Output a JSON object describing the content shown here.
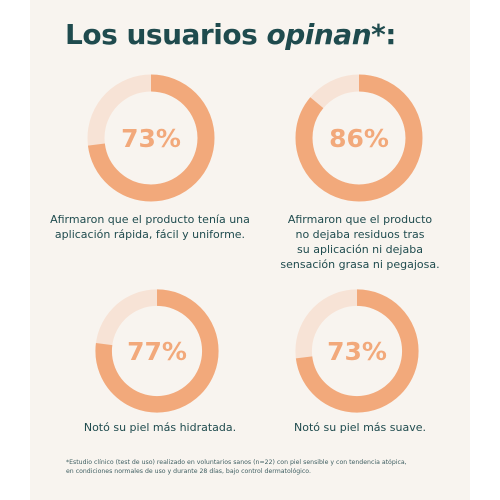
{
  "colors": {
    "background": "#f8f4ef",
    "ring_fill": "#f2a97b",
    "ring_track": "#f7e3d6",
    "text_dark": "#1f4b4e"
  },
  "header": {
    "title_part1": "Los usuarios ",
    "title_emphasis": "opinan",
    "title_suffix": "*:"
  },
  "stats": [
    {
      "value": 73,
      "label": "73%",
      "caption": "Afirmaron que el producto tenía una\naplicación rápida, fácil y uniforme."
    },
    {
      "value": 86,
      "label": "86%",
      "caption": "Afirmaron que el producto\nno dejaba residuos tras\nsu aplicación ni dejaba\nsensación grasa ni pegajosa."
    },
    {
      "value": 77,
      "label": "77%",
      "caption": "Notó su piel más hidratada."
    },
    {
      "value": 73,
      "label": "73%",
      "caption": "Notó su piel más suave."
    }
  ],
  "footnote": "*Estudio clínico (test de uso) realizado en voluntarios sanos (n=22) con piel sensible y con tendencia atópica,\n en condiciones normales de uso y durante 28 días, bajo control dermatológico."
}
